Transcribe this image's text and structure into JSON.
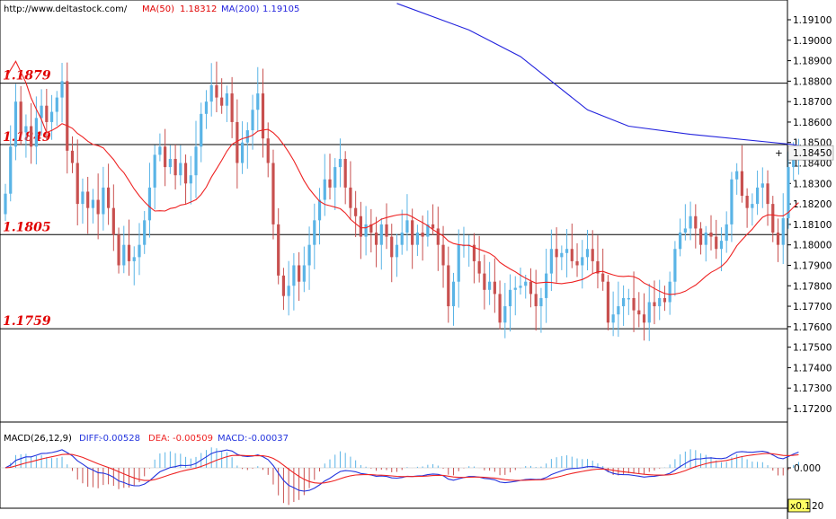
{
  "header": {
    "url": "http://www.deltastock.com/",
    "ma50_label": "MA(50)",
    "ma50_value": "1.18312",
    "ma200_label": "MA(200)",
    "ma200_value": "1.19105"
  },
  "colors": {
    "up": "#5ab4e6",
    "down": "#c8504f",
    "ma50": "#ee2222",
    "ma200": "#2222dd",
    "level_text": "#e00000",
    "macd_diff": "#2233dd",
    "macd_dea": "#ee2222",
    "macd_hist": "#c8504f",
    "macd_hist_pos": "#5ab4e6"
  },
  "chart_data": [
    {
      "type": "candlestick",
      "title": "",
      "ylim": [
        1.1715,
        1.1922
      ],
      "yticks": [
        "1.19100",
        "1.19000",
        "1.18900",
        "1.18800",
        "1.18700",
        "1.18600",
        "1.18500",
        "1.18400",
        "1.18300",
        "1.18200",
        "1.18100",
        "1.18000",
        "1.17900",
        "1.17800",
        "1.17700",
        "1.17600",
        "1.17500",
        "1.17400",
        "1.17300",
        "1.17200"
      ],
      "last_price": "1.18450",
      "levels": [
        {
          "label": "1.1879",
          "value": 1.1879
        },
        {
          "label": "1.1849",
          "value": 1.1849
        },
        {
          "label": "1.1805",
          "value": 1.1805
        },
        {
          "label": "1.1759",
          "value": 1.1759
        }
      ],
      "closes": [
        1.1825,
        1.1848,
        1.187,
        1.1855,
        1.1858,
        1.1848,
        1.1862,
        1.1868,
        1.186,
        1.1865,
        1.1872,
        1.188,
        1.1846,
        1.184,
        1.182,
        1.1826,
        1.1818,
        1.1822,
        1.1815,
        1.1828,
        1.1818,
        1.1805,
        1.179,
        1.18,
        1.1792,
        1.1794,
        1.18,
        1.1812,
        1.1828,
        1.1844,
        1.1848,
        1.1838,
        1.1842,
        1.1834,
        1.184,
        1.183,
        1.1834,
        1.1848,
        1.1864,
        1.187,
        1.1878,
        1.1872,
        1.1868,
        1.1874,
        1.186,
        1.184,
        1.185,
        1.1856,
        1.1866,
        1.1874,
        1.1852,
        1.184,
        1.181,
        1.1785,
        1.1775,
        1.178,
        1.179,
        1.1782,
        1.179,
        1.18,
        1.1812,
        1.1822,
        1.1832,
        1.1828,
        1.1838,
        1.1842,
        1.1828,
        1.1818,
        1.1814,
        1.1804,
        1.181,
        1.1806,
        1.18,
        1.181,
        1.1804,
        1.1794,
        1.18,
        1.1806,
        1.1812,
        1.18,
        1.1806,
        1.1804,
        1.181,
        1.1808,
        1.18,
        1.179,
        1.177,
        1.1782,
        1.18,
        1.18,
        1.18,
        1.1792,
        1.1786,
        1.1778,
        1.1782,
        1.1776,
        1.1762,
        1.177,
        1.1778,
        1.1779,
        1.178,
        1.1782,
        1.1776,
        1.177,
        1.1774,
        1.1786,
        1.1798,
        1.1794,
        1.1796,
        1.1798,
        1.1792,
        1.179,
        1.1794,
        1.1798,
        1.1792,
        1.1786,
        1.1782,
        1.1762,
        1.1766,
        1.177,
        1.1774,
        1.1774,
        1.1768,
        1.1766,
        1.1762,
        1.1772,
        1.177,
        1.1774,
        1.1772,
        1.1782,
        1.1798,
        1.1806,
        1.1808,
        1.1814,
        1.1808,
        1.18,
        1.1806,
        1.1804,
        1.1798,
        1.1802,
        1.181,
        1.1832,
        1.1836,
        1.1824,
        1.1818,
        1.182,
        1.1828,
        1.183,
        1.182,
        1.1806,
        1.18,
        1.1813,
        1.1838,
        1.1845,
        1.1847
      ],
      "series": [
        {
          "name": "MA(50)",
          "value": "1.18312"
        },
        {
          "name": "MA(200)",
          "value": "1.19105"
        }
      ]
    },
    {
      "type": "macd",
      "title": "MACD(26,12,9)",
      "diff_label": "DIFF:",
      "diff_value": "-0.00528",
      "dea_label": "DEA:",
      "dea_value": "-0.00509",
      "macd_label": "MACD:",
      "macd_value": "-0.00037",
      "yticks": [
        "0.000"
      ],
      "scale_label": "x0.1",
      "scale_tail": "20"
    }
  ]
}
